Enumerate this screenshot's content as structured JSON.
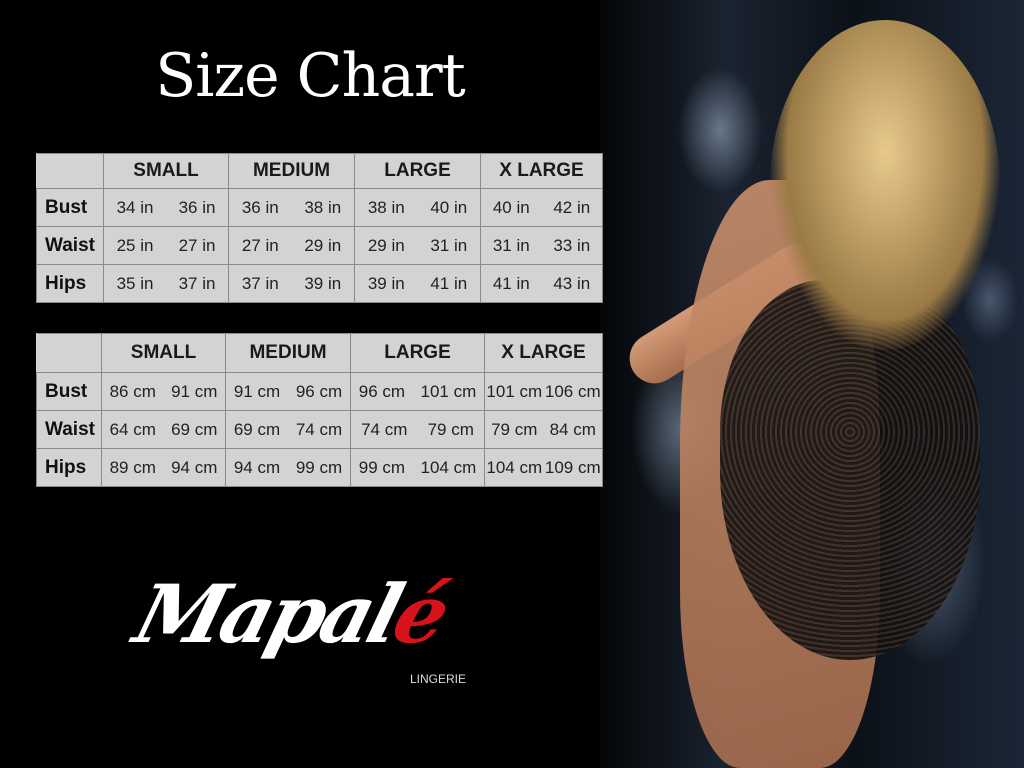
{
  "title": "Size Chart",
  "sizes": [
    "SMALL",
    "MEDIUM",
    "LARGE",
    "X LARGE"
  ],
  "inches": {
    "rows": [
      {
        "label": "Bust",
        "values": [
          "34 in",
          "36 in",
          "36 in",
          "38 in",
          "38 in",
          "40 in",
          "40 in",
          "42 in"
        ]
      },
      {
        "label": "Waist",
        "values": [
          "25 in",
          "27 in",
          "27 in",
          "29 in",
          "29 in",
          "31 in",
          "31 in",
          "33 in"
        ]
      },
      {
        "label": "Hips",
        "values": [
          "35 in",
          "37 in",
          "37 in",
          "39 in",
          "39 in",
          "41 in",
          "41 in",
          "43 in"
        ]
      }
    ]
  },
  "cm": {
    "rows": [
      {
        "label": "Bust",
        "values": [
          "86 cm",
          "91 cm",
          "91 cm",
          "96 cm",
          "96 cm",
          "101 cm",
          "101 cm",
          "106 cm"
        ]
      },
      {
        "label": "Waist",
        "values": [
          "64 cm",
          "69 cm",
          "69 cm",
          "74 cm",
          "74 cm",
          "79  cm",
          "79 cm",
          "84 cm"
        ]
      },
      {
        "label": "Hips",
        "values": [
          "89 cm",
          "94 cm",
          "94 cm",
          "99 cm",
          "99 cm",
          "104 cm",
          "104 cm",
          "109 cm"
        ]
      }
    ]
  },
  "logo": {
    "main": "Mapal",
    "accent": "é",
    "sub": "LINGERIE",
    "accent_color": "#d8121b"
  },
  "colors": {
    "background": "#000000",
    "table_bg": "#d3d3d3"
  }
}
